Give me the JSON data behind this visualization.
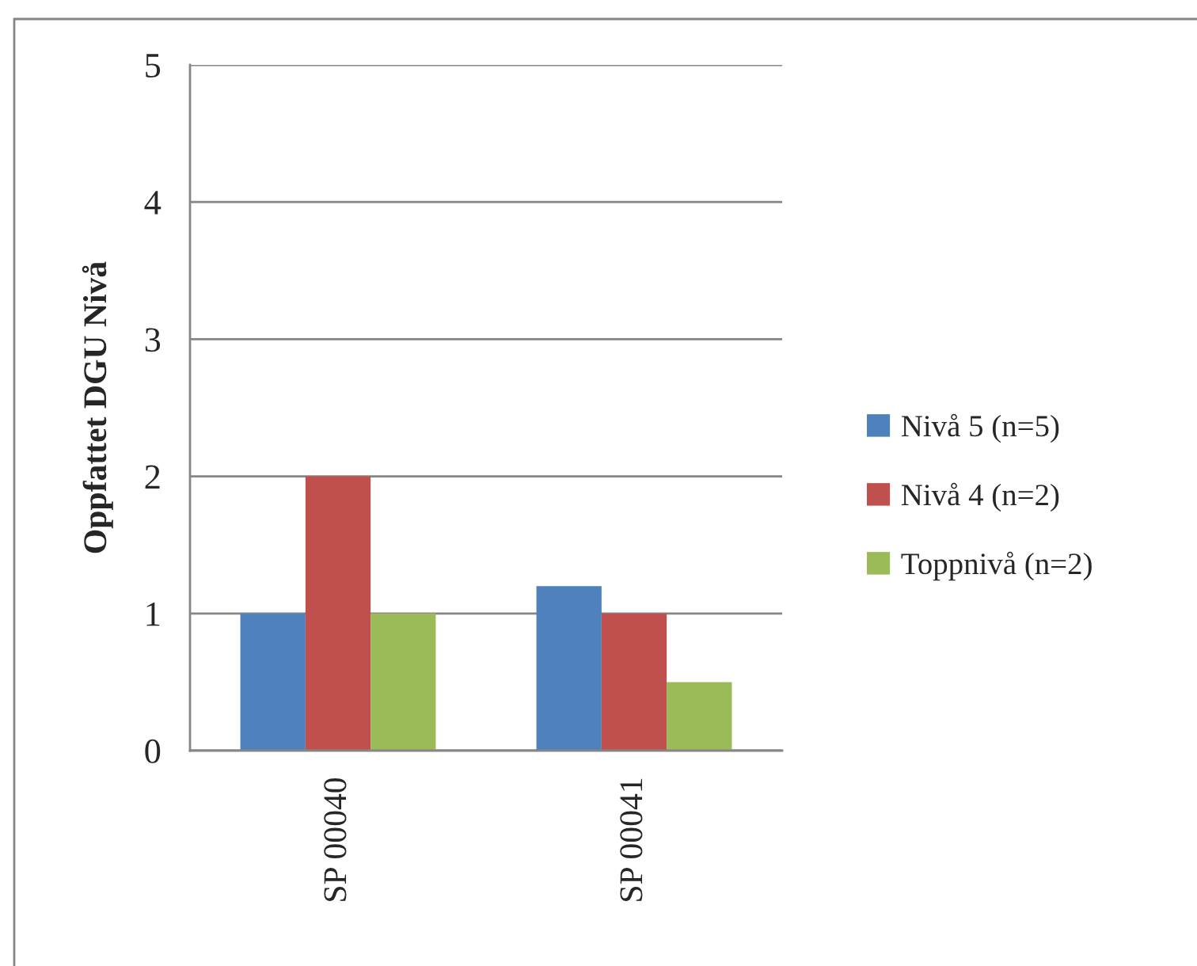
{
  "chart_data": {
    "type": "bar",
    "ylabel": "Oppfattet DGU Nivå",
    "categories": [
      "SP 00040",
      "SP 00041"
    ],
    "series": [
      {
        "name": "Nivå 5 (n=5)",
        "color": "#4f81bd",
        "values": [
          1,
          1.2
        ]
      },
      {
        "name": "Nivå 4 (n=2)",
        "color": "#c0504d",
        "values": [
          2,
          1
        ]
      },
      {
        "name": "Toppnivå (n=2)",
        "color": "#9bbb59",
        "values": [
          1,
          0.5
        ]
      }
    ],
    "ylim": [
      0,
      5
    ],
    "yticks": [
      0,
      1,
      2,
      3,
      4,
      5
    ],
    "grid": "y",
    "legend": "right"
  }
}
